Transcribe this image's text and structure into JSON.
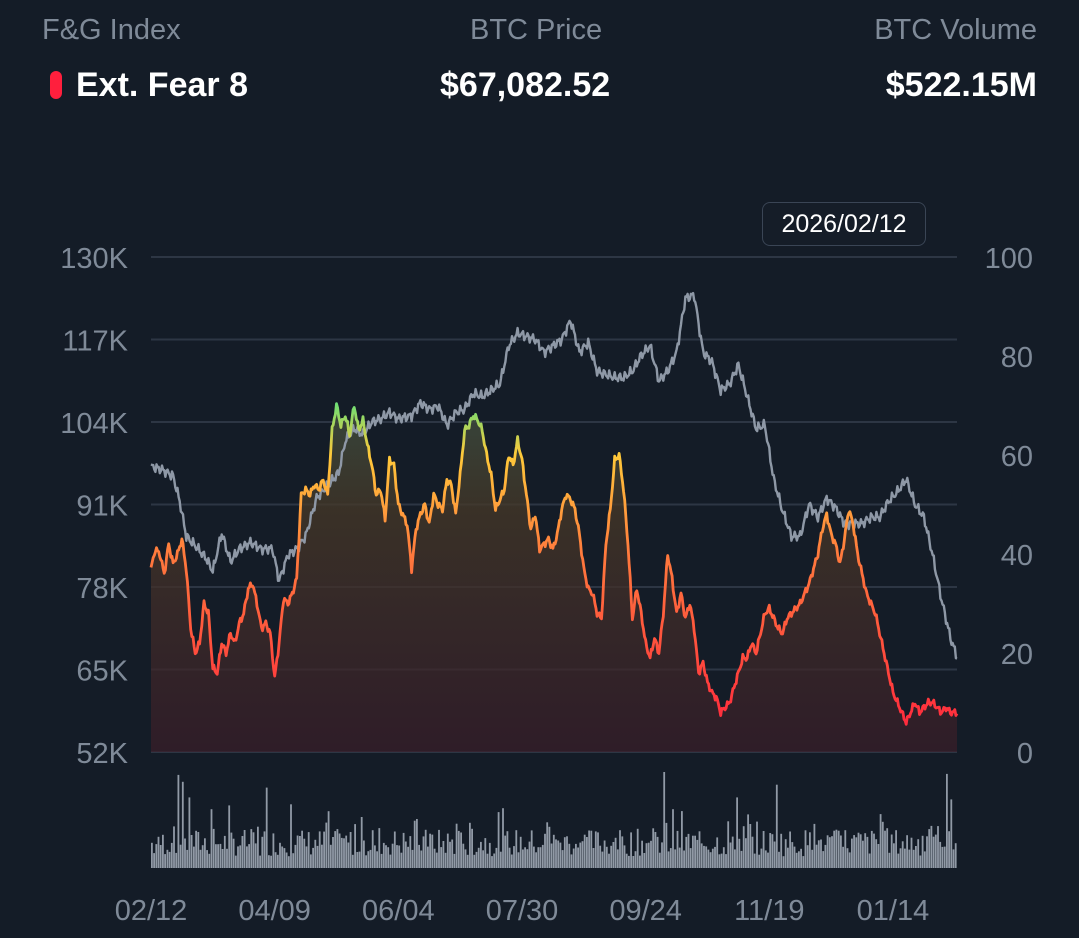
{
  "header": {
    "fg_label": "F&G Index",
    "fg_status": "Ext. Fear 8",
    "fg_status_color": "#ff1f3d",
    "price_label": "BTC Price",
    "price_value": "$67,082.52",
    "volume_label": "BTC Volume",
    "volume_value": "$522.15M"
  },
  "tooltip": {
    "date": "2026/02/12"
  },
  "colors": {
    "background": "#141c27",
    "grid": "#2d3644",
    "axis_text": "#7f8a98",
    "price_line": "#8e98a6",
    "volume_bars": "#a7b0bd",
    "fg_scale": [
      "#ff1f3d",
      "#ff7a3d",
      "#ffc93a",
      "#2ee88e"
    ]
  },
  "chart_data": {
    "type": "line",
    "x_tick_labels": [
      "02/12",
      "04/09",
      "06/04",
      "07/30",
      "09/24",
      "11/19",
      "01/14"
    ],
    "x_tick_days": [
      0,
      56,
      112,
      168,
      224,
      280,
      336
    ],
    "x_range_days": [
      0,
      365
    ],
    "y_left": {
      "label": "",
      "ticks": [
        "130K",
        "117K",
        "104K",
        "91K",
        "78K",
        "65K",
        "52K"
      ],
      "range": [
        52000,
        130000
      ]
    },
    "y_right": {
      "label": "",
      "ticks": [
        "100",
        "80",
        "60",
        "40",
        "20",
        "0"
      ],
      "range": [
        0,
        100
      ]
    },
    "grid": true,
    "series": [
      {
        "axis": "left",
        "days": [
          0,
          5,
          10,
          13,
          16,
          20,
          25,
          28,
          32,
          36,
          40,
          45,
          50,
          55,
          58,
          62,
          66,
          70,
          75,
          80,
          85,
          88,
          92,
          96,
          100,
          104,
          108,
          112,
          118,
          122,
          126,
          130,
          134,
          138,
          142,
          146,
          150,
          154,
          158,
          162,
          166,
          170,
          174,
          178,
          182,
          186,
          190,
          194,
          198,
          202,
          206,
          210,
          214,
          218,
          222,
          226,
          230,
          234,
          238,
          242,
          246,
          250,
          254,
          258,
          262,
          266,
          270,
          274,
          278,
          282,
          286,
          290,
          294,
          298,
          302,
          306,
          310,
          314,
          318,
          322,
          326,
          330,
          334,
          338,
          342,
          346,
          350,
          354,
          358,
          362,
          365
        ],
        "values": [
          97000,
          96500,
          95500,
          91500,
          86000,
          84500,
          82500,
          80500,
          86500,
          82000,
          84000,
          85000,
          84000,
          84000,
          79000,
          83000,
          84000,
          86000,
          92000,
          94000,
          96000,
          101000,
          103000,
          102000,
          104000,
          104500,
          105500,
          104500,
          105000,
          107000,
          106000,
          106500,
          103500,
          105500,
          106000,
          108500,
          108000,
          109000,
          110000,
          116000,
          118000,
          117500,
          117000,
          115000,
          116000,
          117000,
          120000,
          115000,
          116500,
          112000,
          111500,
          111000,
          111000,
          112000,
          114500,
          116000,
          110500,
          112000,
          115000,
          123500,
          124000,
          115000,
          113500,
          109000,
          110000,
          113000,
          108000,
          103000,
          103500,
          95000,
          90000,
          86000,
          86000,
          91000,
          89000,
          92000,
          90500,
          88000,
          88000,
          88000,
          89000,
          89000,
          91500,
          93000,
          95000,
          91000,
          89000,
          83000,
          76000,
          70000,
          67000
        ],
        "color": "#8e98a6"
      },
      {
        "axis": "right",
        "days": [
          0,
          2,
          4,
          6,
          8,
          10,
          12,
          14,
          16,
          18,
          20,
          22,
          24,
          26,
          28,
          30,
          32,
          34,
          36,
          38,
          40,
          42,
          44,
          46,
          48,
          50,
          52,
          54,
          56,
          58,
          60,
          62,
          64,
          66,
          68,
          70,
          72,
          74,
          76,
          78,
          80,
          82,
          84,
          86,
          88,
          90,
          92,
          94,
          96,
          98,
          100,
          102,
          104,
          106,
          108,
          110,
          112,
          114,
          116,
          118,
          120,
          122,
          124,
          126,
          128,
          130,
          132,
          134,
          136,
          138,
          140,
          142,
          144,
          146,
          148,
          150,
          152,
          154,
          156,
          158,
          160,
          162,
          164,
          166,
          168,
          170,
          172,
          174,
          176,
          178,
          180,
          182,
          184,
          186,
          188,
          190,
          192,
          194,
          196,
          198,
          200,
          202,
          204,
          206,
          208,
          210,
          212,
          214,
          216,
          218,
          220,
          222,
          224,
          226,
          228,
          230,
          232,
          234,
          236,
          238,
          240,
          242,
          244,
          246,
          248,
          250,
          252,
          254,
          256,
          258,
          260,
          262,
          264,
          266,
          268,
          270,
          272,
          274,
          276,
          278,
          280,
          282,
          284,
          286,
          288,
          290,
          292,
          294,
          296,
          298,
          300,
          302,
          304,
          306,
          308,
          310,
          312,
          314,
          316,
          318,
          320,
          322,
          324,
          326,
          328,
          330,
          332,
          334,
          336,
          338,
          340,
          342,
          344,
          346,
          348,
          350,
          352,
          354,
          356,
          358,
          360,
          362,
          365
        ],
        "values": [
          37,
          41,
          40,
          36,
          42,
          38,
          40,
          43,
          37,
          25,
          20,
          22,
          30,
          28,
          17,
          16,
          22,
          20,
          24,
          22,
          26,
          28,
          33,
          34,
          30,
          25,
          26,
          24,
          15,
          22,
          31,
          30,
          32,
          35,
          52,
          53,
          52,
          54,
          53,
          55,
          52,
          65,
          70,
          66,
          68,
          64,
          70,
          65,
          67,
          62,
          58,
          52,
          53,
          47,
          59,
          58,
          50,
          48,
          46,
          37,
          45,
          48,
          50,
          46,
          52,
          50,
          49,
          55,
          54,
          48,
          56,
          65,
          66,
          68,
          67,
          65,
          60,
          56,
          49,
          51,
          53,
          60,
          58,
          63,
          59,
          52,
          45,
          48,
          41,
          42,
          43,
          41,
          44,
          49,
          52,
          51,
          49,
          44,
          37,
          33,
          32,
          28,
          27,
          42,
          49,
          59,
          60,
          53,
          42,
          27,
          33,
          28,
          22,
          19,
          23,
          20,
          28,
          40,
          35,
          28,
          32,
          27,
          30,
          25,
          16,
          18,
          14,
          12,
          11,
          8,
          9,
          10,
          13,
          16,
          19,
          19,
          22,
          20,
          24,
          28,
          29,
          27,
          25,
          24,
          27,
          28,
          29,
          30,
          32,
          34,
          37,
          40,
          45,
          48,
          44,
          42,
          38,
          43,
          49,
          46,
          40,
          36,
          32,
          30,
          28,
          24,
          20,
          16,
          12,
          10,
          8,
          6,
          8,
          10,
          8,
          9,
          10,
          10,
          9,
          8,
          9,
          8,
          8
        ],
        "fill": "gradient"
      }
    ],
    "volume_bars": "bottom panel, per-day bars without value axis"
  }
}
